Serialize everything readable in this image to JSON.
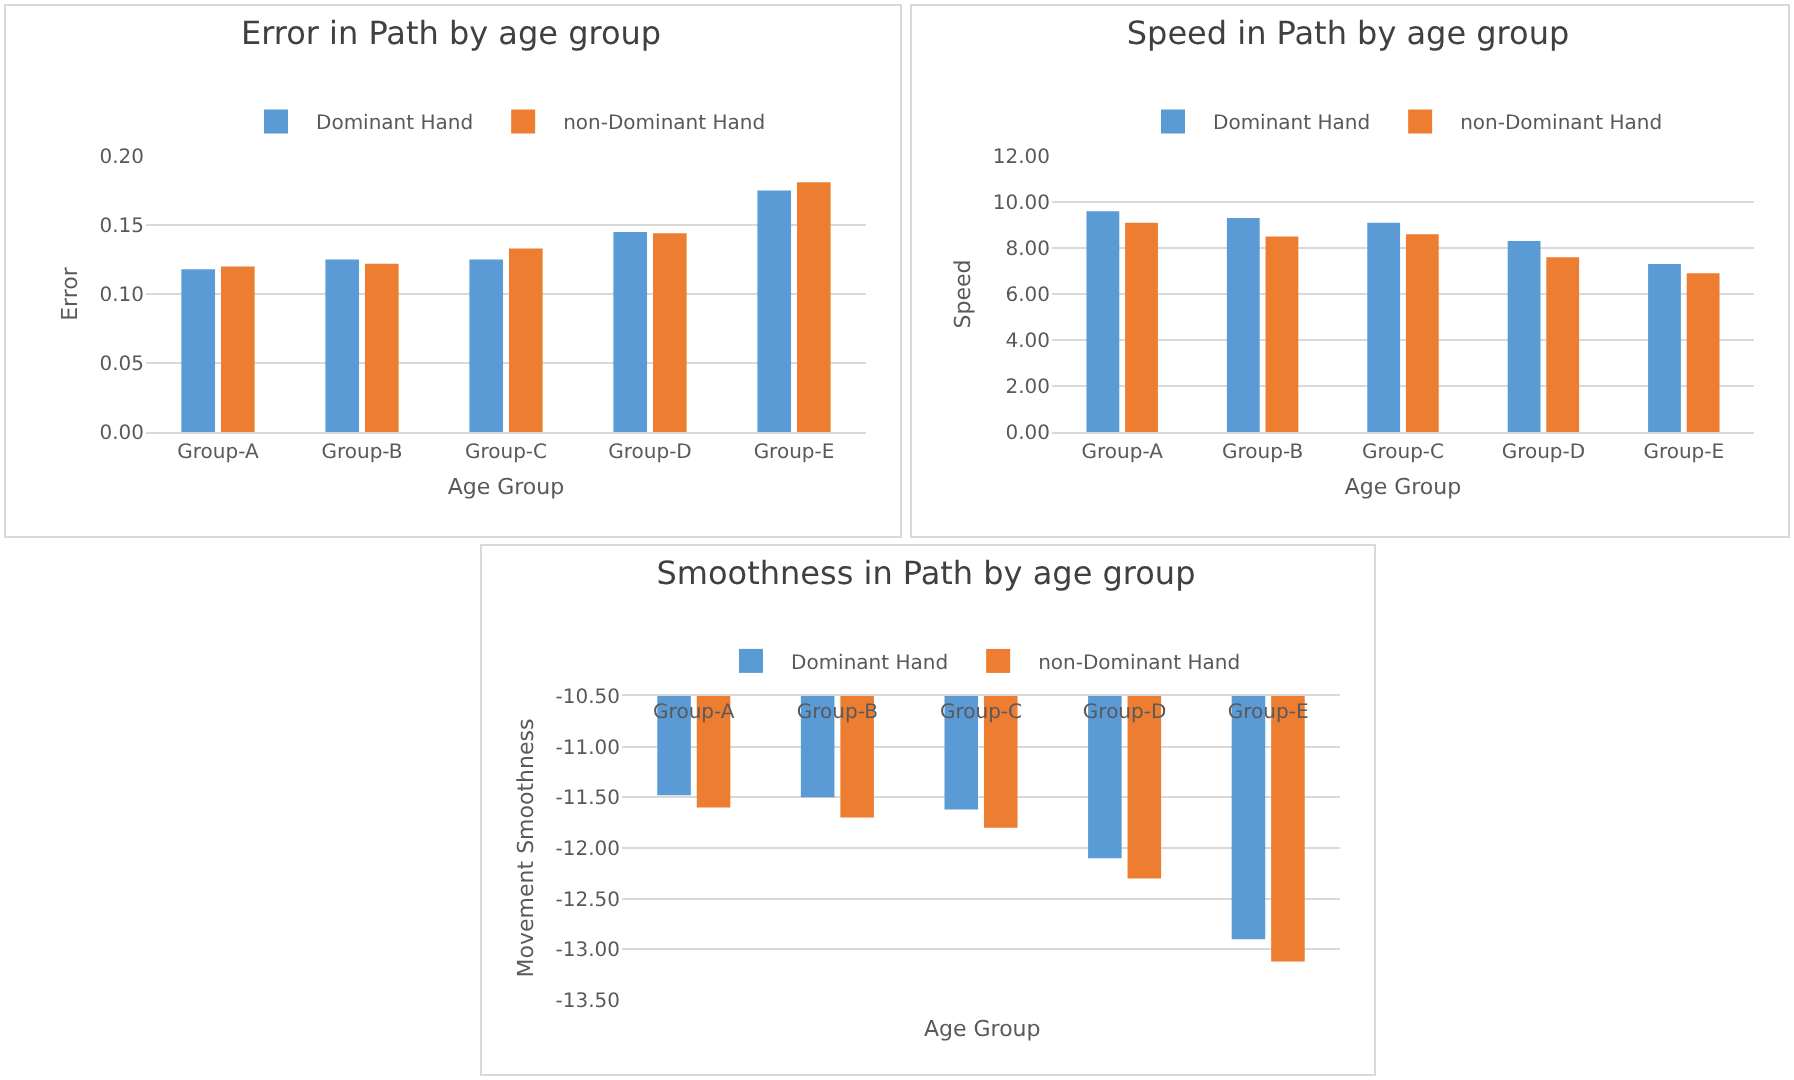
{
  "chart_data": [
    {
      "type": "bar",
      "title": "Error in Path by age group",
      "xlabel": "Age Group",
      "ylabel": "Error",
      "categories": [
        "Group-A",
        "Group-B",
        "Group-C",
        "Group-D",
        "Group-E"
      ],
      "series": [
        {
          "name": "Dominant Hand",
          "color": "#5b9bd5",
          "values": [
            0.118,
            0.125,
            0.125,
            0.145,
            0.175
          ]
        },
        {
          "name": "non-Dominant Hand",
          "color": "#ed7d31",
          "values": [
            0.12,
            0.122,
            0.133,
            0.144,
            0.181
          ]
        }
      ],
      "ylim": [
        0,
        0.2
      ],
      "yticks": [
        {
          "value": 0,
          "label": "0.00"
        },
        {
          "value": 0.05,
          "label": "0.05"
        },
        {
          "value": 0.1,
          "label": "0.10"
        },
        {
          "value": 0.15,
          "label": "0.15"
        },
        {
          "value": 0.2,
          "label": "0.20"
        }
      ],
      "grid": "y",
      "legend": "top"
    },
    {
      "type": "bar",
      "title": "Speed in Path by age group",
      "xlabel": "Age Group",
      "ylabel": "Speed",
      "categories": [
        "Group-A",
        "Group-B",
        "Group-C",
        "Group-D",
        "Group-E"
      ],
      "series": [
        {
          "name": "Dominant Hand",
          "color": "#5b9bd5",
          "values": [
            9.6,
            9.3,
            9.1,
            8.3,
            7.3
          ]
        },
        {
          "name": "non-Dominant Hand",
          "color": "#ed7d31",
          "values": [
            9.1,
            8.5,
            8.6,
            7.6,
            6.9
          ]
        }
      ],
      "ylim": [
        0,
        12
      ],
      "yticks": [
        {
          "value": 0,
          "label": "0.00"
        },
        {
          "value": 2,
          "label": "2.00"
        },
        {
          "value": 4,
          "label": "4.00"
        },
        {
          "value": 6,
          "label": "6.00"
        },
        {
          "value": 8,
          "label": "8.00"
        },
        {
          "value": 10,
          "label": "10.00"
        },
        {
          "value": 12,
          "label": "12.00"
        }
      ],
      "grid": "y",
      "legend": "top"
    },
    {
      "type": "bar",
      "title": "Smoothness in Path by age group",
      "xlabel": "Age Group",
      "ylabel": "Movement Smoothness",
      "categories": [
        "Group-A",
        "Group-B",
        "Group-C",
        "Group-D",
        "Group-E"
      ],
      "series": [
        {
          "name": "Dominant Hand",
          "color": "#5b9bd5",
          "values": [
            -11.48,
            -11.5,
            -11.62,
            -12.1,
            -12.9
          ]
        },
        {
          "name": "non-Dominant Hand",
          "color": "#ed7d31",
          "values": [
            -11.6,
            -11.7,
            -11.8,
            -12.3,
            -13.12
          ]
        }
      ],
      "ylim": [
        -13.5,
        -10.5
      ],
      "yticks": [
        {
          "value": -13.5,
          "label": "-13.50"
        },
        {
          "value": -13,
          "label": "-13.00"
        },
        {
          "value": -12.5,
          "label": "-12.50"
        },
        {
          "value": -12,
          "label": "-12.00"
        },
        {
          "value": -11.5,
          "label": "-11.50"
        },
        {
          "value": -11,
          "label": "-11.00"
        },
        {
          "value": -10.5,
          "label": "-10.50"
        }
      ],
      "grid": "y",
      "legend": "top"
    }
  ]
}
